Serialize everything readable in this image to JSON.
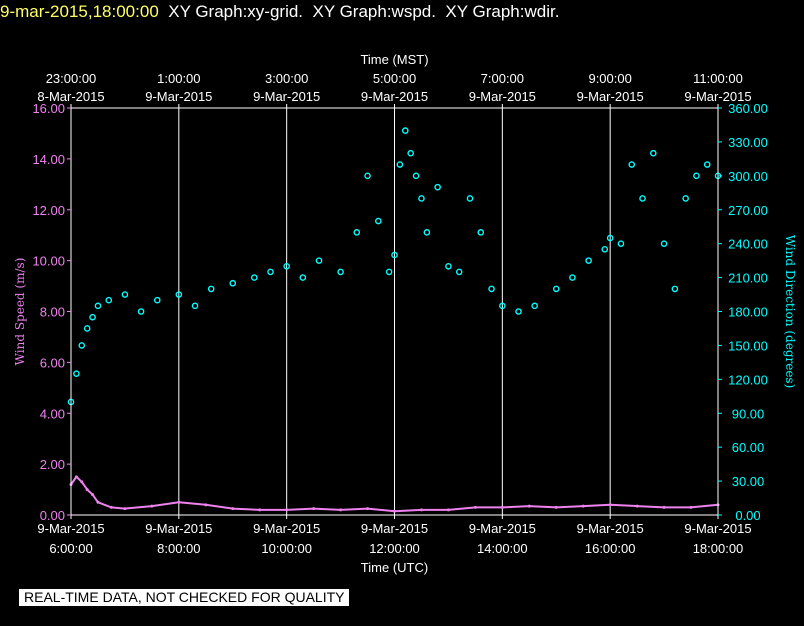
{
  "header": {
    "timestamp": "9-mar-2015,18:00:00",
    "titles": [
      "XY Graph:xy-grid.",
      "XY Graph:wspd.",
      "XY Graph:wdir."
    ]
  },
  "disclaimer": "REAL-TIME DATA, NOT CHECKED FOR QUALITY",
  "colors": {
    "background": "#000000",
    "text": "#ffffff",
    "timestamp": "#ffff66",
    "wind_speed": "#ee82ee",
    "wind_direction": "#00ffff",
    "grid": "#ffffff"
  },
  "chart_data": {
    "type": "line",
    "grid": true,
    "x_top_label": "Time (MST)",
    "x_bottom_label": "Time (UTC)",
    "x_range_utc_hours": [
      6,
      18
    ],
    "x_ticks_bottom": [
      {
        "hour": 6,
        "date": "9-Mar-2015",
        "time": "6:00:00"
      },
      {
        "hour": 8,
        "date": "9-Mar-2015",
        "time": "8:00:00"
      },
      {
        "hour": 10,
        "date": "9-Mar-2015",
        "time": "10:00:00"
      },
      {
        "hour": 12,
        "date": "9-Mar-2015",
        "time": "12:00:00"
      },
      {
        "hour": 14,
        "date": "9-Mar-2015",
        "time": "14:00:00"
      },
      {
        "hour": 16,
        "date": "9-Mar-2015",
        "time": "16:00:00"
      },
      {
        "hour": 18,
        "date": "9-Mar-2015",
        "time": "18:00:00"
      }
    ],
    "x_ticks_top": [
      {
        "hour": 6,
        "time": "23:00:00",
        "date": "8-Mar-2015"
      },
      {
        "hour": 8,
        "time": "1:00:00",
        "date": "9-Mar-2015"
      },
      {
        "hour": 10,
        "time": "3:00:00",
        "date": "9-Mar-2015"
      },
      {
        "hour": 12,
        "time": "5:00:00",
        "date": "9-Mar-2015"
      },
      {
        "hour": 14,
        "time": "7:00:00",
        "date": "9-Mar-2015"
      },
      {
        "hour": 16,
        "time": "9:00:00",
        "date": "9-Mar-2015"
      },
      {
        "hour": 18,
        "time": "11:00:00",
        "date": "9-Mar-2015"
      }
    ],
    "y_left": {
      "label": "Wind Speed (m/s)",
      "range": [
        0,
        16
      ],
      "ticks": [
        "0.00",
        "2.00",
        "4.00",
        "6.00",
        "8.00",
        "10.00",
        "12.00",
        "14.00",
        "16.00"
      ]
    },
    "y_right": {
      "label": "Wind Direction (degrees)",
      "range": [
        0,
        360
      ],
      "ticks": [
        "0.00",
        "30.00",
        "60.00",
        "90.00",
        "120.00",
        "150.00",
        "180.00",
        "210.00",
        "240.00",
        "270.00",
        "300.00",
        "330.00",
        "360.00"
      ]
    },
    "series": [
      {
        "name": "Wind Speed",
        "axis": "left",
        "style": "line",
        "x": [
          6.0,
          6.1,
          6.2,
          6.3,
          6.4,
          6.5,
          6.75,
          7.0,
          7.5,
          8.0,
          8.5,
          9.0,
          9.5,
          10.0,
          10.5,
          11.0,
          11.5,
          12.0,
          12.5,
          13.0,
          13.5,
          14.0,
          14.5,
          15.0,
          15.5,
          16.0,
          16.5,
          17.0,
          17.5,
          18.0
        ],
        "y": [
          1.2,
          1.5,
          1.3,
          1.0,
          0.8,
          0.5,
          0.3,
          0.25,
          0.35,
          0.5,
          0.4,
          0.25,
          0.2,
          0.2,
          0.25,
          0.2,
          0.25,
          0.15,
          0.2,
          0.2,
          0.3,
          0.3,
          0.35,
          0.3,
          0.35,
          0.4,
          0.35,
          0.3,
          0.3,
          0.4
        ]
      },
      {
        "name": "Wind Direction",
        "axis": "right",
        "style": "scatter",
        "x": [
          6.0,
          6.1,
          6.2,
          6.3,
          6.4,
          6.5,
          6.7,
          7.0,
          7.3,
          7.6,
          8.0,
          8.3,
          8.6,
          9.0,
          9.4,
          9.7,
          10.0,
          10.3,
          10.6,
          11.0,
          11.3,
          11.5,
          11.7,
          11.9,
          12.0,
          12.1,
          12.2,
          12.3,
          12.4,
          12.5,
          12.6,
          12.8,
          13.0,
          13.2,
          13.4,
          13.6,
          13.8,
          14.0,
          14.3,
          14.6,
          15.0,
          15.3,
          15.6,
          15.9,
          16.0,
          16.2,
          16.4,
          16.6,
          16.8,
          17.0,
          17.2,
          17.4,
          17.6,
          17.8,
          18.0
        ],
        "y": [
          100,
          125,
          150,
          165,
          175,
          185,
          190,
          195,
          180,
          190,
          195,
          185,
          200,
          205,
          210,
          215,
          220,
          210,
          225,
          215,
          250,
          300,
          260,
          215,
          230,
          310,
          340,
          320,
          300,
          280,
          250,
          290,
          220,
          215,
          280,
          250,
          200,
          185,
          180,
          185,
          200,
          210,
          225,
          235,
          245,
          240,
          310,
          280,
          320,
          240,
          200,
          280,
          300,
          310,
          300
        ]
      }
    ]
  }
}
